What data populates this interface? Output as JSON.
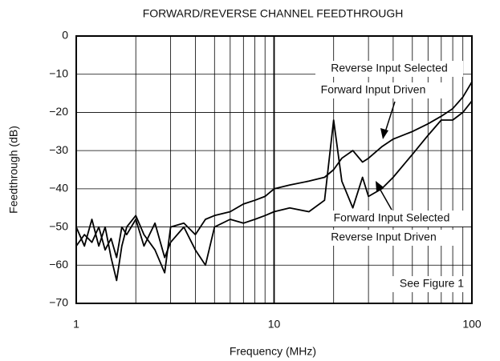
{
  "chart_data": {
    "type": "line",
    "title": "FORWARD/REVERSE CHANNEL FEEDTHROUGH",
    "xlabel": "Frequency (MHz)",
    "ylabel": "Feedthrough (dB)",
    "xscale": "log",
    "grid": true,
    "x": [
      1,
      1.1,
      1.2,
      1.3,
      1.4,
      1.5,
      1.6,
      1.7,
      1.8,
      2,
      2.2,
      2.5,
      2.8,
      3,
      3.5,
      4,
      4.5,
      5,
      6,
      7,
      8,
      9,
      10,
      12,
      15,
      18,
      20,
      22,
      25,
      28,
      30,
      35,
      40,
      50,
      60,
      70,
      80,
      90,
      100
    ],
    "series": [
      {
        "name": "Reverse Input Selected Forward Input Driven",
        "color": "#000000",
        "values": [
          -50,
          -55,
          -48,
          -55,
          -50,
          -58,
          -64,
          -55,
          -50,
          -47,
          -52,
          -56,
          -62,
          -50,
          -49,
          -52,
          -48,
          -47,
          -46,
          -44,
          -43,
          -42,
          -40,
          -39,
          -38,
          -37,
          -35,
          -32,
          -30,
          -33,
          -32,
          -29,
          -27,
          -25,
          -23,
          -21,
          -19,
          -16,
          -12
        ]
      },
      {
        "name": "Forward Input Selected Reverse Input Driven",
        "color": "#000000",
        "values": [
          -55,
          -52,
          -54,
          -50,
          -56,
          -53,
          -58,
          -50,
          -52,
          -48,
          -55,
          -49,
          -58,
          -54,
          -50,
          -56,
          -60,
          -50,
          -48,
          -49,
          -48,
          -47,
          -46,
          -45,
          -46,
          -43,
          -22,
          -38,
          -45,
          -37,
          -42,
          -40,
          -37,
          -31,
          -26,
          -22,
          -22,
          -20,
          -17
        ]
      }
    ],
    "xlim": [
      1,
      100
    ],
    "xticks": [
      1,
      10,
      100
    ],
    "ylim": [
      -70,
      0
    ],
    "yticks": [
      {
        "value": -70,
        "label": "−70"
      },
      {
        "value": -60,
        "label": "−60"
      },
      {
        "value": -50,
        "label": "−50"
      },
      {
        "value": -40,
        "label": "−40"
      },
      {
        "value": -30,
        "label": "−30"
      },
      {
        "value": -20,
        "label": "−20"
      },
      {
        "value": -10,
        "label": "−10"
      },
      0
    ],
    "annotations": [
      "Reverse Input Selected",
      "Forward Input Driven",
      "Forward Input Selected",
      "Reverse Input Driven",
      "See Figure 1"
    ]
  }
}
